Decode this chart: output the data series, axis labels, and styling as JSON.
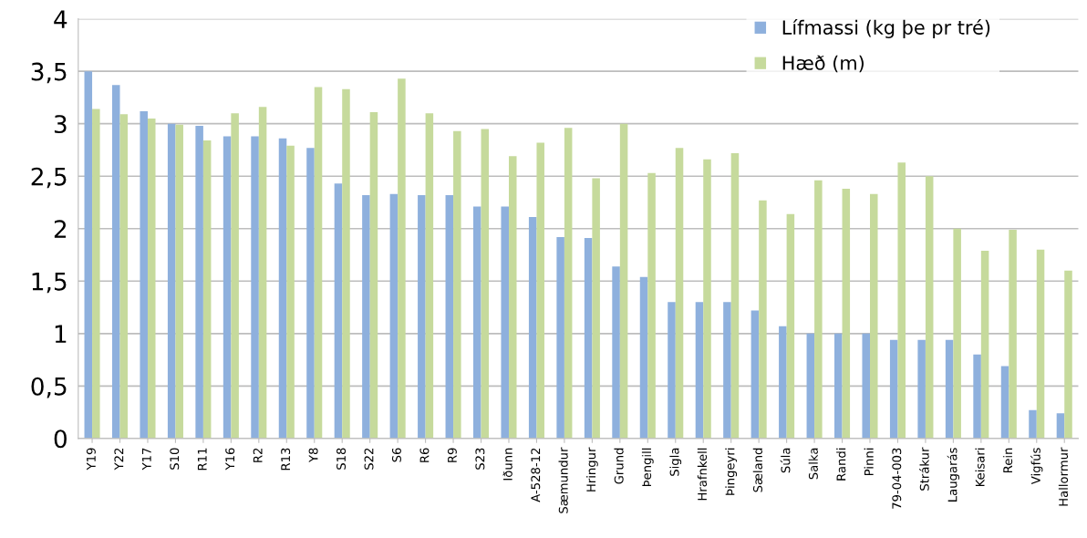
{
  "chart_data": {
    "type": "bar",
    "categories": [
      "Y19",
      "Y22",
      "Y17",
      "S10",
      "R11",
      "Y16",
      "R2",
      "R13",
      "Y8",
      "S18",
      "S22",
      "S6",
      "R6",
      "R9",
      "S23",
      "Iðunn",
      "A-528-12",
      "Sæmundur",
      "Hringur",
      "Grund",
      "Þengill",
      "Sigla",
      "Hrafnkell",
      "Þingeyri",
      "Sæland",
      "Súla",
      "Salka",
      "Randi",
      "Pinni",
      "79-04-003",
      "Strákur",
      "Laugarás",
      "Keisari",
      "Rein",
      "Vigfús",
      "Hallormur"
    ],
    "series": [
      {
        "name": "Lífmassi (kg þe pr tré)",
        "color": "#8eb0dd",
        "values": [
          3.5,
          3.37,
          3.12,
          3.0,
          2.98,
          2.88,
          2.88,
          2.86,
          2.77,
          2.43,
          2.32,
          2.33,
          2.32,
          2.32,
          2.21,
          2.21,
          2.11,
          1.92,
          1.91,
          1.64,
          1.54,
          1.3,
          1.3,
          1.3,
          1.22,
          1.07,
          1.0,
          1.0,
          1.0,
          0.94,
          0.94,
          0.94,
          0.8,
          0.69,
          0.27,
          0.24
        ]
      },
      {
        "name": "Hæð (m)",
        "color": "#c6da9c",
        "values": [
          3.14,
          3.09,
          3.05,
          2.99,
          2.84,
          3.1,
          3.16,
          2.79,
          3.35,
          3.33,
          3.11,
          3.43,
          3.1,
          2.93,
          2.95,
          2.69,
          2.82,
          2.96,
          2.48,
          3.0,
          2.53,
          2.77,
          2.66,
          2.72,
          2.27,
          2.14,
          2.46,
          2.38,
          2.33,
          2.63,
          2.5,
          2.0,
          1.79,
          1.99,
          1.8,
          1.6
        ]
      }
    ],
    "ylim": [
      0,
      4
    ],
    "yticks": [
      0,
      {
        "value": 0.5,
        "label": "0,5"
      },
      1,
      {
        "value": 1.5,
        "label": "1,5"
      },
      2,
      {
        "value": 2.5,
        "label": "2,5"
      },
      3,
      {
        "value": 3.5,
        "label": "3,5"
      },
      4
    ],
    "grid": "y",
    "legend": "top right"
  }
}
